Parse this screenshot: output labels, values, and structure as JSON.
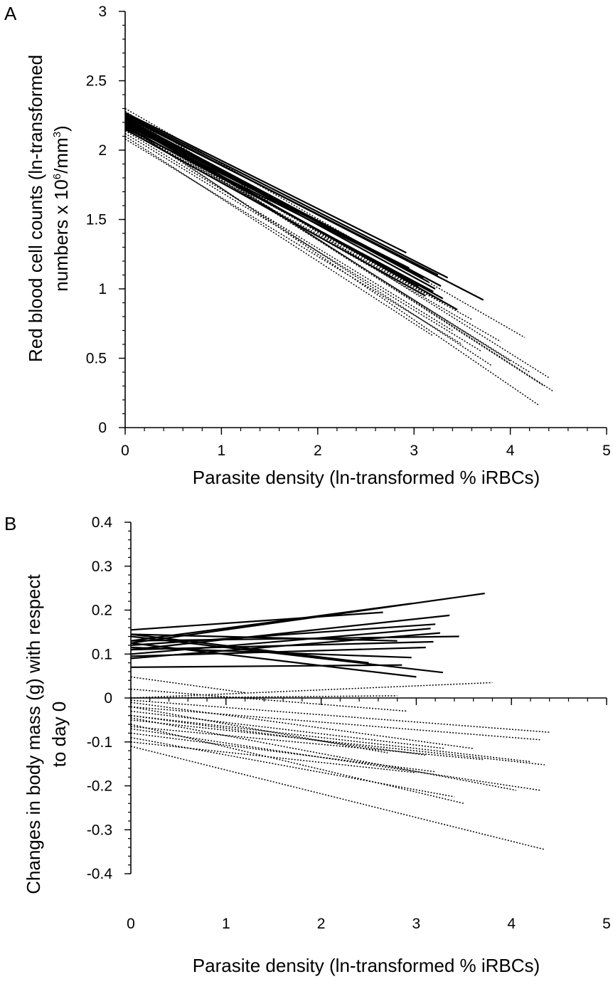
{
  "chart_data": [
    {
      "panel": "A",
      "type": "line",
      "xlabel": "Parasite density (ln-transformed % iRBCs)",
      "ylabel_line1": "Red blood cell counts (ln-transformed",
      "ylabel_line2_pre": "numbers x 10",
      "ylabel_sup1": "6",
      "ylabel_line2_mid": "/mm",
      "ylabel_sup2": "3",
      "ylabel_line2_post": ")",
      "xlim": [
        0,
        5
      ],
      "ylim": [
        0,
        3
      ],
      "xticks": [
        "0",
        "1",
        "2",
        "3",
        "4",
        "5"
      ],
      "yticks": [
        "0",
        "0.5",
        "1",
        "1.5",
        "2",
        "2.5",
        "3"
      ],
      "grid": false,
      "series": [
        {
          "style": "solid",
          "x": [
            0,
            2.92
          ],
          "y": [
            2.27,
            1.26
          ]
        },
        {
          "style": "solid",
          "x": [
            0,
            3.35
          ],
          "y": [
            2.26,
            1.08
          ]
        },
        {
          "style": "solid",
          "x": [
            0,
            3.25
          ],
          "y": [
            2.24,
            1.1
          ]
        },
        {
          "style": "solid",
          "x": [
            0,
            3.72
          ],
          "y": [
            2.25,
            0.92
          ]
        },
        {
          "style": "solid",
          "x": [
            0,
            3.15
          ],
          "y": [
            2.23,
            1.05
          ]
        },
        {
          "style": "solid",
          "x": [
            0,
            3.22
          ],
          "y": [
            2.22,
            1.0
          ]
        },
        {
          "style": "solid",
          "x": [
            0,
            3.1
          ],
          "y": [
            2.21,
            1.08
          ]
        },
        {
          "style": "solid",
          "x": [
            0,
            3.45
          ],
          "y": [
            2.21,
            0.85
          ]
        },
        {
          "style": "solid",
          "x": [
            0,
            3.05
          ],
          "y": [
            2.2,
            1.02
          ]
        },
        {
          "style": "solid",
          "x": [
            0,
            3.3
          ],
          "y": [
            2.19,
            0.93
          ]
        },
        {
          "style": "solid",
          "x": [
            0,
            2.95
          ],
          "y": [
            2.18,
            1.15
          ]
        },
        {
          "style": "solid",
          "x": [
            0,
            3.2
          ],
          "y": [
            2.17,
            0.98
          ]
        },
        {
          "style": "solid",
          "x": [
            0,
            3.0
          ],
          "y": [
            2.16,
            1.12
          ]
        },
        {
          "style": "solid",
          "x": [
            0,
            3.12
          ],
          "y": [
            2.15,
            0.95
          ]
        },
        {
          "style": "solid",
          "x": [
            0,
            2.85
          ],
          "y": [
            2.2,
            1.18
          ]
        },
        {
          "style": "solid",
          "x": [
            0,
            3.28
          ],
          "y": [
            2.23,
            1.02
          ]
        },
        {
          "style": "dotted",
          "x": [
            0,
            4.15
          ],
          "y": [
            2.3,
            0.65
          ]
        },
        {
          "style": "dotted",
          "x": [
            0,
            4.4
          ],
          "y": [
            2.28,
            0.36
          ]
        },
        {
          "style": "dotted",
          "x": [
            0,
            4.45
          ],
          "y": [
            2.26,
            0.26
          ]
        },
        {
          "style": "dotted",
          "x": [
            0,
            4.35
          ],
          "y": [
            2.25,
            0.3
          ]
        },
        {
          "style": "dotted",
          "x": [
            0,
            4.3
          ],
          "y": [
            2.2,
            0.16
          ]
        },
        {
          "style": "dotted",
          "x": [
            0,
            4.2
          ],
          "y": [
            2.22,
            0.4
          ]
        },
        {
          "style": "dotted",
          "x": [
            0,
            3.9
          ],
          "y": [
            2.18,
            0.62
          ]
        },
        {
          "style": "dotted",
          "x": [
            0,
            3.6
          ],
          "y": [
            2.16,
            0.78
          ]
        },
        {
          "style": "dotted",
          "x": [
            0,
            3.4
          ],
          "y": [
            2.14,
            0.7
          ]
        },
        {
          "style": "dotted",
          "x": [
            0,
            3.7
          ],
          "y": [
            2.12,
            0.55
          ]
        },
        {
          "style": "dotted",
          "x": [
            0,
            3.2
          ],
          "y": [
            2.1,
            0.66
          ]
        },
        {
          "style": "dotted",
          "x": [
            0,
            3.5
          ],
          "y": [
            2.08,
            0.6
          ]
        },
        {
          "style": "dotted",
          "x": [
            0,
            4.0
          ],
          "y": [
            2.24,
            0.48
          ]
        },
        {
          "style": "dotted",
          "x": [
            0,
            3.3
          ],
          "y": [
            2.2,
            0.9
          ]
        },
        {
          "style": "dotted",
          "x": [
            0,
            3.8
          ],
          "y": [
            2.18,
            0.45
          ]
        }
      ]
    },
    {
      "panel": "B",
      "type": "line",
      "xlabel": "Parasite density (ln-transformed % iRBCs)",
      "ylabel_line1": "Changes in body mass (g) with respect",
      "ylabel_line2": "to day 0",
      "xlim": [
        0,
        5
      ],
      "ylim": [
        -0.4,
        0.4
      ],
      "xticks": [
        "0",
        "1",
        "2",
        "3",
        "4",
        "5"
      ],
      "yticks": [
        "-0.4",
        "-0.3",
        "-0.2",
        "-0.1",
        "0",
        "0.1",
        "0.2",
        "0.3",
        "0.4"
      ],
      "grid": false,
      "series": [
        {
          "style": "solid",
          "x": [
            0,
            3.72
          ],
          "y": [
            0.125,
            0.238
          ]
        },
        {
          "style": "solid",
          "x": [
            0,
            2.95
          ],
          "y": [
            0.13,
            0.215
          ]
        },
        {
          "style": "solid",
          "x": [
            0,
            3.35
          ],
          "y": [
            0.11,
            0.188
          ]
        },
        {
          "style": "solid",
          "x": [
            0,
            2.65
          ],
          "y": [
            0.155,
            0.195
          ]
        },
        {
          "style": "solid",
          "x": [
            0,
            3.2
          ],
          "y": [
            0.12,
            0.168
          ]
        },
        {
          "style": "solid",
          "x": [
            0,
            3.15
          ],
          "y": [
            0.1,
            0.158
          ]
        },
        {
          "style": "solid",
          "x": [
            0,
            3.45
          ],
          "y": [
            0.13,
            0.14
          ]
        },
        {
          "style": "solid",
          "x": [
            0,
            3.25
          ],
          "y": [
            0.09,
            0.148
          ]
        },
        {
          "style": "solid",
          "x": [
            0,
            3.18
          ],
          "y": [
            0.11,
            0.128
          ]
        },
        {
          "style": "solid",
          "x": [
            0,
            2.8
          ],
          "y": [
            0.145,
            0.13
          ]
        },
        {
          "style": "solid",
          "x": [
            0,
            3.28
          ],
          "y": [
            0.14,
            0.058
          ]
        },
        {
          "style": "solid",
          "x": [
            0,
            3.0
          ],
          "y": [
            0.125,
            0.048
          ]
        },
        {
          "style": "solid",
          "x": [
            0,
            2.95
          ],
          "y": [
            0.115,
            0.092
          ]
        },
        {
          "style": "solid",
          "x": [
            0,
            2.5
          ],
          "y": [
            0.145,
            0.08
          ]
        },
        {
          "style": "solid",
          "x": [
            0,
            2.85
          ],
          "y": [
            0.07,
            0.075
          ]
        },
        {
          "style": "solid",
          "x": [
            0,
            3.1
          ],
          "y": [
            0.095,
            0.115
          ]
        },
        {
          "style": "dotted",
          "x": [
            0,
            3.8
          ],
          "y": [
            0.0,
            0.035
          ]
        },
        {
          "style": "dotted",
          "x": [
            0,
            2.8
          ],
          "y": [
            0.0,
            0.005
          ]
        },
        {
          "style": "dotted",
          "x": [
            0,
            1.2
          ],
          "y": [
            0.048,
            0.012
          ]
        },
        {
          "style": "dotted",
          "x": [
            0,
            4.4
          ],
          "y": [
            -0.005,
            -0.078
          ]
        },
        {
          "style": "dotted",
          "x": [
            0,
            4.3
          ],
          "y": [
            -0.02,
            -0.095
          ]
        },
        {
          "style": "dotted",
          "x": [
            0,
            4.2
          ],
          "y": [
            -0.04,
            -0.145
          ]
        },
        {
          "style": "dotted",
          "x": [
            0,
            4.35
          ],
          "y": [
            -0.05,
            -0.152
          ]
        },
        {
          "style": "dotted",
          "x": [
            0,
            4.3
          ],
          "y": [
            -0.07,
            -0.21
          ]
        },
        {
          "style": "dotted",
          "x": [
            0,
            3.5
          ],
          "y": [
            -0.06,
            -0.24
          ]
        },
        {
          "style": "dotted",
          "x": [
            0,
            3.4
          ],
          "y": [
            -0.09,
            -0.225
          ]
        },
        {
          "style": "dotted",
          "x": [
            0,
            3.3
          ],
          "y": [
            -0.03,
            -0.115
          ]
        },
        {
          "style": "dotted",
          "x": [
            0,
            3.1
          ],
          "y": [
            -0.04,
            -0.13
          ]
        },
        {
          "style": "dotted",
          "x": [
            0,
            3.2
          ],
          "y": [
            -0.08,
            -0.168
          ]
        },
        {
          "style": "dotted",
          "x": [
            0,
            2.7
          ],
          "y": [
            -0.02,
            -0.125
          ]
        },
        {
          "style": "dotted",
          "x": [
            0,
            3.0
          ],
          "y": [
            -0.1,
            -0.17
          ]
        },
        {
          "style": "dotted",
          "x": [
            0,
            4.05
          ],
          "y": [
            -0.045,
            -0.21
          ]
        },
        {
          "style": "dotted",
          "x": [
            0,
            3.6
          ],
          "y": [
            -0.01,
            -0.115
          ]
        },
        {
          "style": "dotted",
          "x": [
            0,
            4.35
          ],
          "y": [
            -0.11,
            -0.345
          ]
        },
        {
          "style": "dotted",
          "x": [
            0,
            2.9
          ],
          "y": [
            0.02,
            -0.03
          ]
        },
        {
          "style": "dotted",
          "x": [
            0,
            3.7
          ],
          "y": [
            -0.065,
            -0.14
          ]
        }
      ]
    }
  ]
}
